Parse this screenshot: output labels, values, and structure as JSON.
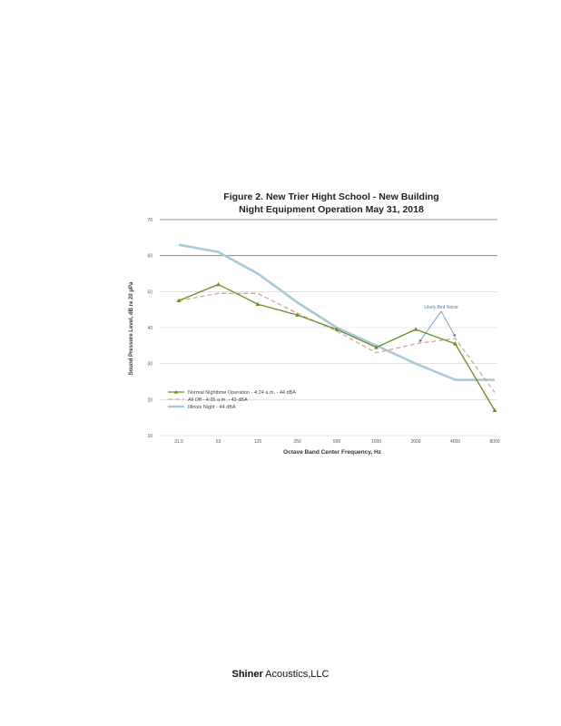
{
  "chart_data": {
    "type": "line",
    "title_line1": "Figure 2.  New Trier Hight School - New Building",
    "title_line2": "Night Equipment Operation   May 31, 2018",
    "xlabel": "Octave Band Center Frequency, Hz",
    "ylabel": "Sound Pressure Level, dB re 20 μPa",
    "categories": [
      "31.5",
      "63",
      "125",
      "250",
      "500",
      "1000",
      "2000",
      "4000",
      "8000"
    ],
    "ylim": [
      10,
      70
    ],
    "yticks": [
      10,
      20,
      30,
      40,
      50,
      60,
      70
    ],
    "grid": "horizontal",
    "legend_position": "bottom-left",
    "series": [
      {
        "name": "Normal Nighttime Operation - 4:24 a.m. - 44 dBA",
        "color": "#6b8e23",
        "style": "solid-triangle",
        "values": [
          47.5,
          52,
          46.5,
          43.5,
          39.5,
          34.5,
          39.5,
          35.5,
          17
        ]
      },
      {
        "name": "All Off - 4:35 a.m. - 43 dBA",
        "color": "#d9a0a5",
        "style": "dashed",
        "values": [
          47.5,
          49.5,
          49.5,
          44,
          39,
          33,
          35.5,
          37,
          22
        ]
      },
      {
        "name": "Illinois Night - 44 dBA",
        "color": "#a7cadb",
        "style": "thick",
        "values": [
          63,
          61,
          55,
          47,
          40,
          35,
          30,
          25.5,
          25.5
        ]
      }
    ],
    "annotations": [
      {
        "text": "Likely Bird Noise"
      }
    ]
  },
  "footer": {
    "company_main": "Shiner",
    "company_rest": " Acoustics,LLC"
  }
}
